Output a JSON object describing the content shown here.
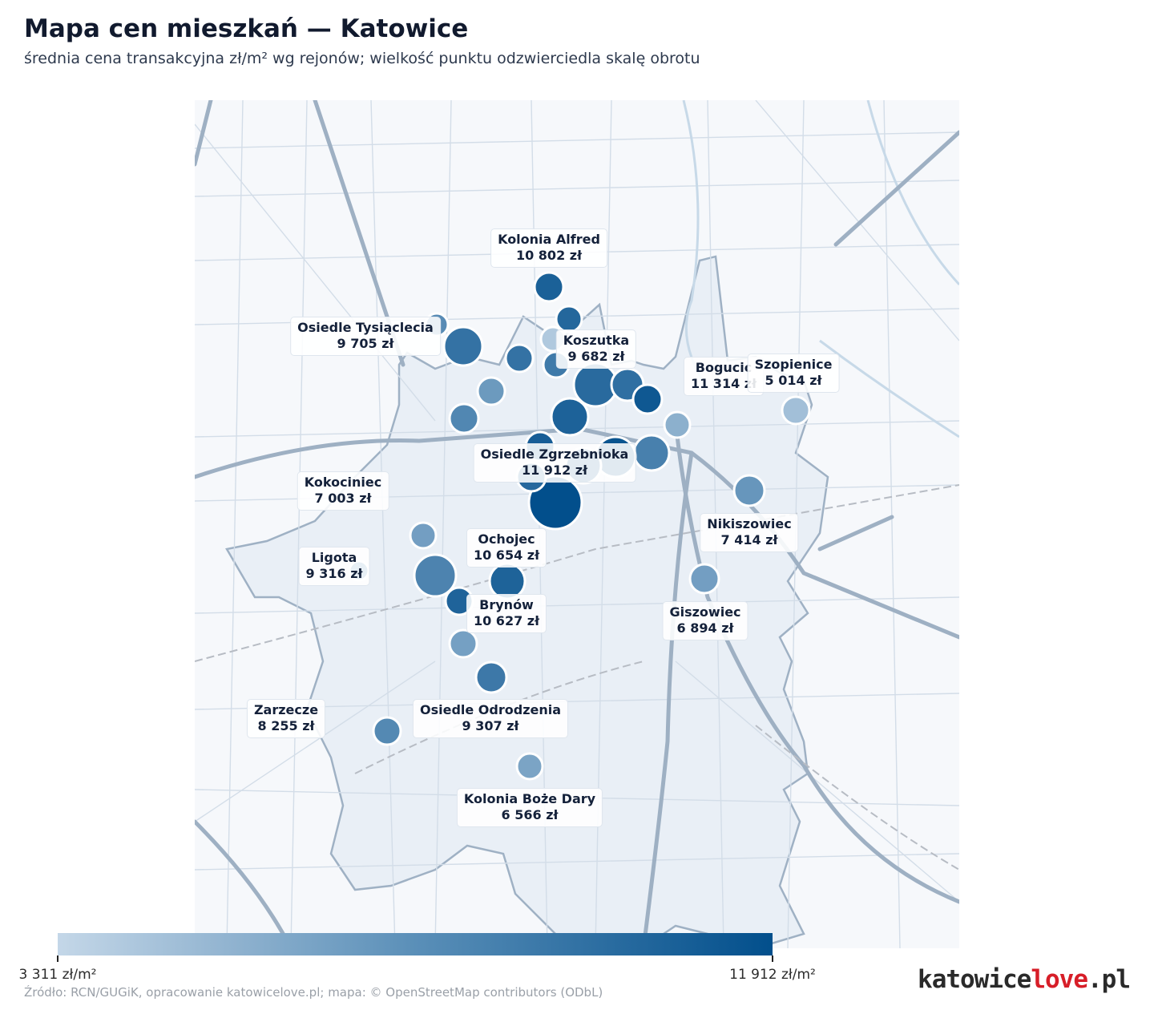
{
  "header": {
    "title": "Mapa cen mieszkań — Katowice",
    "subtitle": "średnia cena transakcyjna zł/m² wg rejonów; wielkość punktu odzwierciedla skalę obrotu"
  },
  "labels": [
    {
      "name": "Kolonia Alfred",
      "value": "10 802 zł"
    },
    {
      "name": "Osiedle Tysiąclecia",
      "value": "9 705 zł"
    },
    {
      "name": "Koszutka",
      "value": "9 682 zł"
    },
    {
      "name": "Bogucic",
      "value": "11 314 zł"
    },
    {
      "name": "Szopienice",
      "value": "5 014 zł"
    },
    {
      "name": "Osiedle Zgrzebnioka",
      "value": "11 912 zł"
    },
    {
      "name": "Kokociniec",
      "value": "7 003 zł"
    },
    {
      "name": "Nikiszowiec",
      "value": "7 414 zł"
    },
    {
      "name": "Ochojec",
      "value": "10 654 zł"
    },
    {
      "name": "Ligota",
      "value": "9 316 zł"
    },
    {
      "name": "Brynów",
      "value": "10 627 zł"
    },
    {
      "name": "Giszowiec",
      "value": "6 894 zł"
    },
    {
      "name": "Zarzecze",
      "value": "8 255 zł"
    },
    {
      "name": "Osiedle Odrodzenia",
      "value": "9 307 zł"
    },
    {
      "name": "Kolonia Boże Dary",
      "value": "6 566 zł"
    }
  ],
  "points": [
    {
      "price": 10802
    },
    {
      "price": 10400
    },
    {
      "price": 4200
    },
    {
      "price": 9705
    },
    {
      "price": 8100
    },
    {
      "price": 9682
    },
    {
      "price": 9200
    },
    {
      "price": 10200
    },
    {
      "price": 9900
    },
    {
      "price": 11314
    },
    {
      "price": 7200
    },
    {
      "price": 8400
    },
    {
      "price": 5800
    },
    {
      "price": 10700
    },
    {
      "price": 11000
    },
    {
      "price": 8800
    },
    {
      "price": 11600
    },
    {
      "price": 10900
    },
    {
      "price": 11912
    },
    {
      "price": 10300
    },
    {
      "price": 4800
    },
    {
      "price": 5014
    },
    {
      "price": 7414
    },
    {
      "price": 7003
    },
    {
      "price": 9316
    },
    {
      "price": 8600
    },
    {
      "price": 6900
    },
    {
      "price": 10654
    },
    {
      "price": 10627
    },
    {
      "price": 6800
    },
    {
      "price": 6894
    },
    {
      "price": 9307
    },
    {
      "price": 8255
    },
    {
      "price": 6566
    }
  ],
  "legend": {
    "min_label": "3 311 zł/m²",
    "max_label": "11 912 zł/m²",
    "min_value": 3311,
    "max_value": 11912,
    "color_low": "#c4d7e8",
    "color_high": "#024f8c"
  },
  "footer": {
    "source": "Źródło: RCN/GUGiK, opracowanie katowicelove.pl; mapa: © OpenStreetMap contributors (ODbL)",
    "brand_prefix": "katowice",
    "brand_accent": "love",
    "brand_suffix": ".pl"
  }
}
